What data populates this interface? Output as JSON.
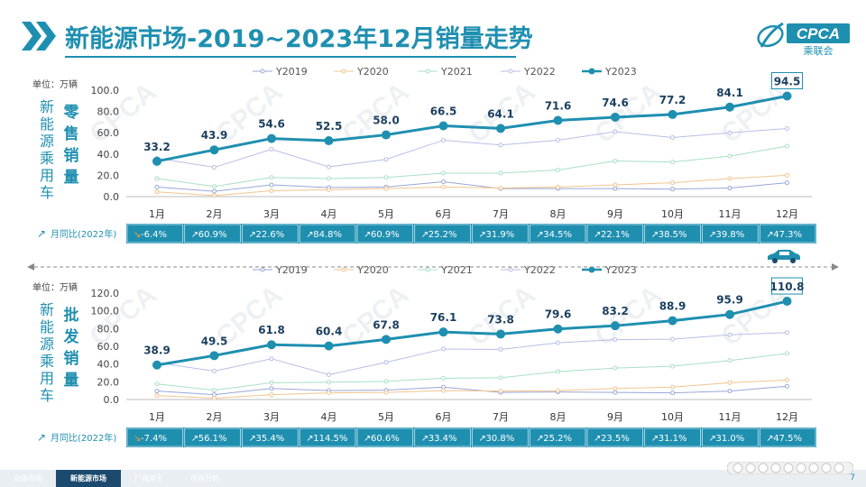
{
  "page": {
    "title": "新能源市场-2019~2023年12月销量走势",
    "page_number": "7",
    "logo_text": "CPCA",
    "logo_subtext": "乘联会",
    "watermark": "CPCA"
  },
  "footer": {
    "tabs": [
      "总体市场",
      "新能源市场",
      "厂商排名",
      "市场分析"
    ],
    "active_tab": 1
  },
  "colors": {
    "accent": "#1f8fb0",
    "Y2019": "#9aa6d8",
    "Y2020": "#f3c48e",
    "Y2021": "#a8dfc6",
    "Y2022": "#b7bfe6",
    "Y2023": "#1f8fb0"
  },
  "chart_data": [
    {
      "type": "line",
      "unit_label": "单位：万辆",
      "side_label_left": "新能源乘用车",
      "side_label_right": "零售销量",
      "yoy_label": "月同比(2022年)",
      "categories": [
        "1月",
        "2月",
        "3月",
        "4月",
        "5月",
        "6月",
        "7月",
        "8月",
        "9月",
        "10月",
        "11月",
        "12月"
      ],
      "ylim": [
        0,
        100
      ],
      "yticks": [
        "100.0",
        "80.0",
        "60.0",
        "40.0",
        "20.0",
        "0.0"
      ],
      "series": [
        {
          "name": "Y2019",
          "values": [
            9.0,
            5.0,
            11.0,
            8.5,
            9.0,
            14.0,
            7.5,
            7.5,
            7.5,
            7.0,
            8.0,
            13.0
          ]
        },
        {
          "name": "Y2020",
          "values": [
            4.5,
            1.0,
            5.5,
            6.5,
            7.5,
            9.0,
            8.0,
            9.0,
            11.0,
            13.0,
            17.0,
            20.0
          ]
        },
        {
          "name": "Y2021",
          "values": [
            17.0,
            9.5,
            18.0,
            17.0,
            18.0,
            22.0,
            22.0,
            25.0,
            33.5,
            32.5,
            38.0,
            47.5
          ]
        },
        {
          "name": "Y2022",
          "values": [
            36.0,
            27.5,
            44.5,
            28.0,
            35.0,
            53.0,
            48.5,
            53.0,
            61.0,
            55.5,
            60.0,
            64.0
          ]
        },
        {
          "name": "Y2023",
          "values": [
            33.2,
            43.9,
            54.6,
            52.5,
            58.0,
            66.5,
            64.1,
            71.6,
            74.6,
            77.2,
            84.1,
            94.5
          ]
        }
      ],
      "data_labels": [
        "33.2",
        "43.9",
        "54.6",
        "52.5",
        "58.0",
        "66.5",
        "64.1",
        "71.6",
        "74.6",
        "77.2",
        "84.1",
        "94.5"
      ],
      "yoy": [
        "-6.4%",
        "60.9%",
        "22.6%",
        "84.8%",
        "60.9%",
        "25.2%",
        "31.9%",
        "34.5%",
        "22.1%",
        "38.5%",
        "39.8%",
        "47.3%"
      ],
      "yoy_trend": [
        "down",
        "up",
        "up",
        "up",
        "up",
        "up",
        "up",
        "up",
        "up",
        "up",
        "up",
        "up"
      ],
      "legend": "top"
    },
    {
      "type": "line",
      "unit_label": "单位：万辆",
      "side_label_left": "新能源乘用车",
      "side_label_right": "批发销量",
      "yoy_label": "月同比(2022年)",
      "categories": [
        "1月",
        "2月",
        "3月",
        "4月",
        "5月",
        "6月",
        "7月",
        "8月",
        "9月",
        "10月",
        "11月",
        "12月"
      ],
      "ylim": [
        0,
        120
      ],
      "yticks": [
        "120.0",
        "100.0",
        "80.0",
        "60.0",
        "40.0",
        "20.0",
        "0.0"
      ],
      "series": [
        {
          "name": "Y2019",
          "values": [
            9.5,
            5.5,
            12.5,
            10.0,
            10.5,
            14.0,
            8.0,
            8.5,
            8.0,
            7.5,
            9.5,
            15.0
          ]
        },
        {
          "name": "Y2020",
          "values": [
            4.5,
            1.5,
            5.5,
            7.5,
            8.0,
            10.0,
            9.5,
            10.0,
            12.5,
            14.0,
            19.0,
            22.0
          ]
        },
        {
          "name": "Y2021",
          "values": [
            17.5,
            10.5,
            19.0,
            19.5,
            20.5,
            24.0,
            24.5,
            31.5,
            35.5,
            37.5,
            44.0,
            52.0
          ]
        },
        {
          "name": "Y2022",
          "values": [
            41.5,
            32.0,
            46.0,
            28.0,
            42.0,
            57.0,
            56.5,
            64.0,
            67.5,
            68.0,
            73.0,
            75.5
          ]
        },
        {
          "name": "Y2023",
          "values": [
            38.9,
            49.5,
            61.8,
            60.4,
            67.8,
            76.1,
            73.8,
            79.6,
            83.2,
            88.9,
            95.9,
            110.8
          ]
        }
      ],
      "data_labels": [
        "38.9",
        "49.5",
        "61.8",
        "60.4",
        "67.8",
        "76.1",
        "73.8",
        "79.6",
        "83.2",
        "88.9",
        "95.9",
        "110.8"
      ],
      "yoy": [
        "-7.4%",
        "56.1%",
        "35.4%",
        "114.5%",
        "60.6%",
        "33.4%",
        "30.8%",
        "25.2%",
        "23.5%",
        "31.1%",
        "31.0%",
        "47.5%"
      ],
      "yoy_trend": [
        "down",
        "up",
        "up",
        "up",
        "up",
        "up",
        "up",
        "up",
        "up",
        "up",
        "up",
        "up"
      ],
      "legend": "top"
    }
  ]
}
